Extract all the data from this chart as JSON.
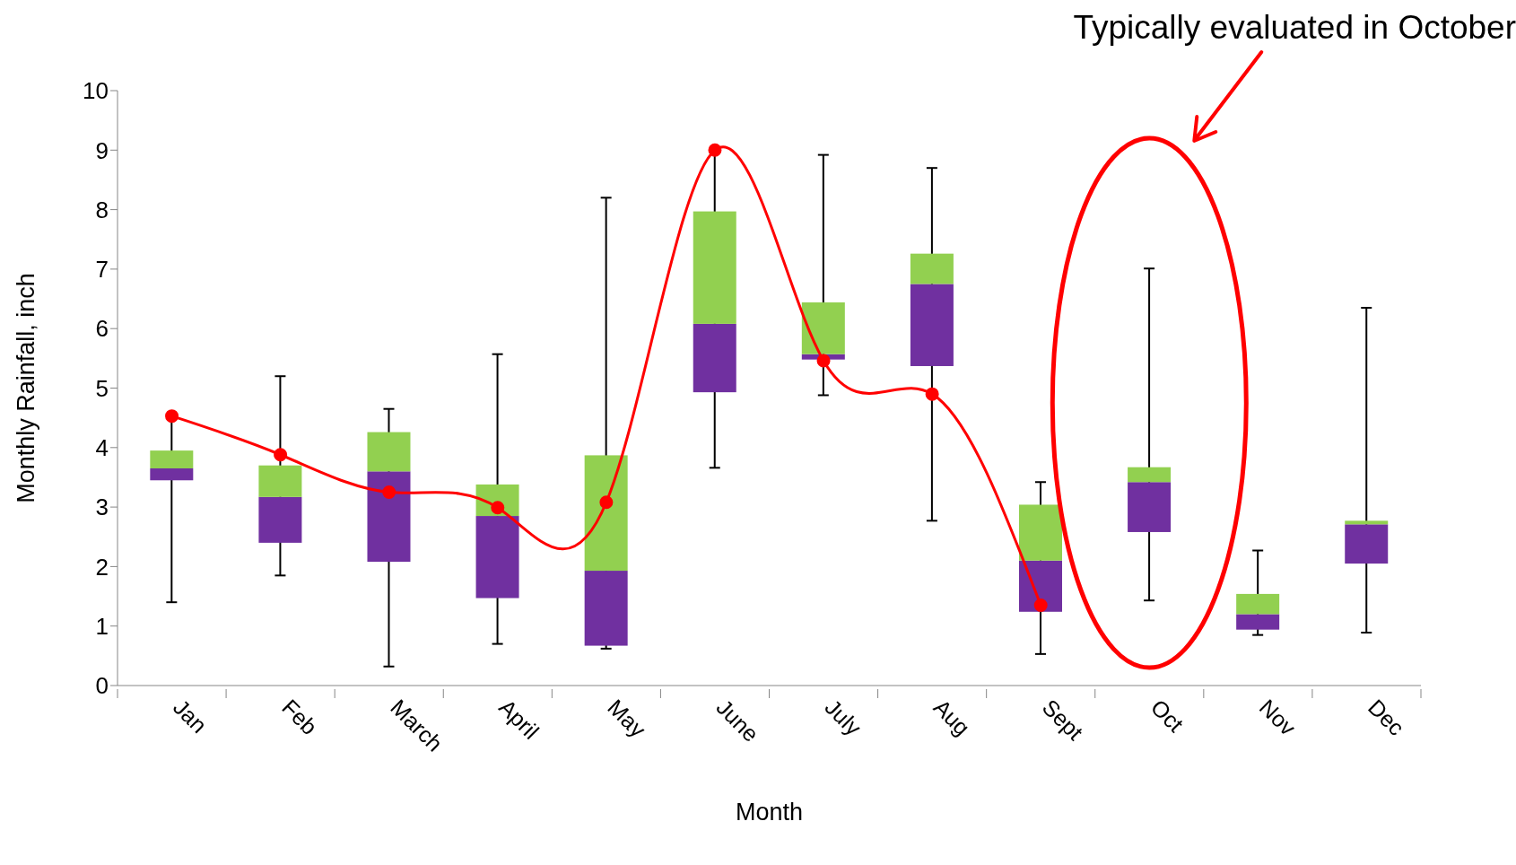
{
  "chart_data": {
    "type": "box",
    "xlabel": "Month",
    "ylabel": "Monthly Rainfall, inch",
    "categories": [
      "Jan",
      "Feb",
      "March",
      "April",
      "May",
      "June",
      "July",
      "Aug",
      "Sept",
      "Oct",
      "Nov",
      "Dec"
    ],
    "ylim": [
      0,
      10
    ],
    "yticks": [
      0,
      1,
      2,
      3,
      4,
      5,
      6,
      7,
      8,
      9,
      10
    ],
    "grid": false,
    "legend": false,
    "annotations": [
      "Typically evaluated in October"
    ],
    "series": [
      {
        "type": "box",
        "color": "#7030a0",
        "boxes": [
          {
            "low": 1.4,
            "q1": 3.45,
            "median": 3.65,
            "q3": 3.95,
            "high": 4.5
          },
          {
            "low": 1.85,
            "q1": 2.4,
            "median": 3.17,
            "q3": 3.7,
            "high": 5.2
          },
          {
            "low": 0.32,
            "q1": 2.08,
            "median": 3.6,
            "q3": 4.26,
            "high": 4.65
          },
          {
            "low": 0.7,
            "q1": 1.47,
            "median": 2.85,
            "q3": 3.38,
            "high": 5.57
          },
          {
            "low": 0.62,
            "q1": 0.67,
            "median": 1.93,
            "q3": 3.87,
            "high": 8.2
          },
          {
            "low": 3.66,
            "q1": 4.93,
            "median": 6.08,
            "q3": 7.97,
            "high": 9.0
          },
          {
            "low": 4.88,
            "q1": 5.48,
            "median": 5.57,
            "q3": 6.44,
            "high": 8.92
          },
          {
            "low": 2.77,
            "q1": 5.37,
            "median": 6.75,
            "q3": 7.26,
            "high": 8.7
          },
          {
            "low": 0.53,
            "q1": 1.24,
            "median": 2.1,
            "q3": 3.04,
            "high": 3.42
          },
          {
            "low": 1.43,
            "q1": 2.58,
            "median": 3.42,
            "q3": 3.67,
            "high": 7.01
          },
          {
            "low": 0.85,
            "q1": 0.94,
            "median": 1.2,
            "q3": 1.54,
            "high": 2.27
          },
          {
            "low": 0.89,
            "q1": 2.05,
            "median": 2.71,
            "q3": 2.77,
            "high": 6.35
          }
        ]
      },
      {
        "type": "line",
        "color": "#ff0000",
        "marker": "circle",
        "line_style": "solid",
        "values": [
          4.53,
          3.88,
          3.25,
          2.99,
          3.08,
          9.0,
          5.46,
          4.9,
          1.35,
          null,
          null,
          null
        ]
      }
    ]
  }
}
